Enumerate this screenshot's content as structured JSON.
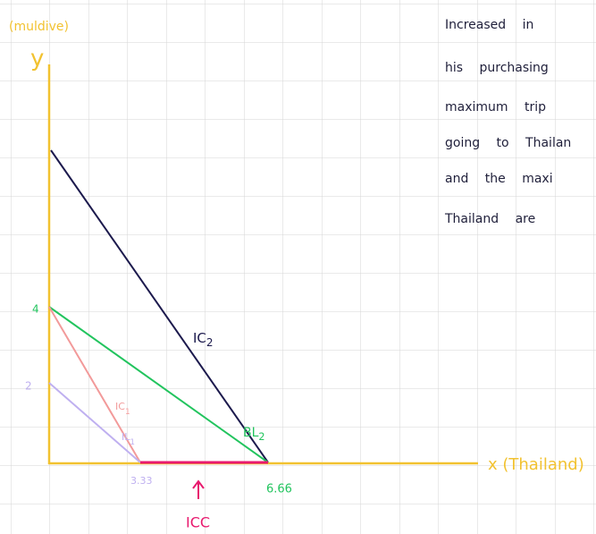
{
  "axis_labels": {
    "y_title": "(muldive)",
    "y": "y",
    "x": "x (Thailand)"
  },
  "labels": {
    "y_high": "4",
    "y_low": "2",
    "x_low": "3.33",
    "x_high": "6.66",
    "icc": "ICC"
  },
  "curve_labels": [
    {
      "text": "IC",
      "sub": "2"
    },
    {
      "text": "IC",
      "sub": "1"
    },
    {
      "text": "IL",
      "sub": "1"
    },
    {
      "text": "BL",
      "sub": "2"
    }
  ],
  "notes": [
    "Increased in",
    "his purchasing",
    "maximum trip",
    "going to Thailan",
    "and the maxi",
    "Thailand are"
  ]
}
